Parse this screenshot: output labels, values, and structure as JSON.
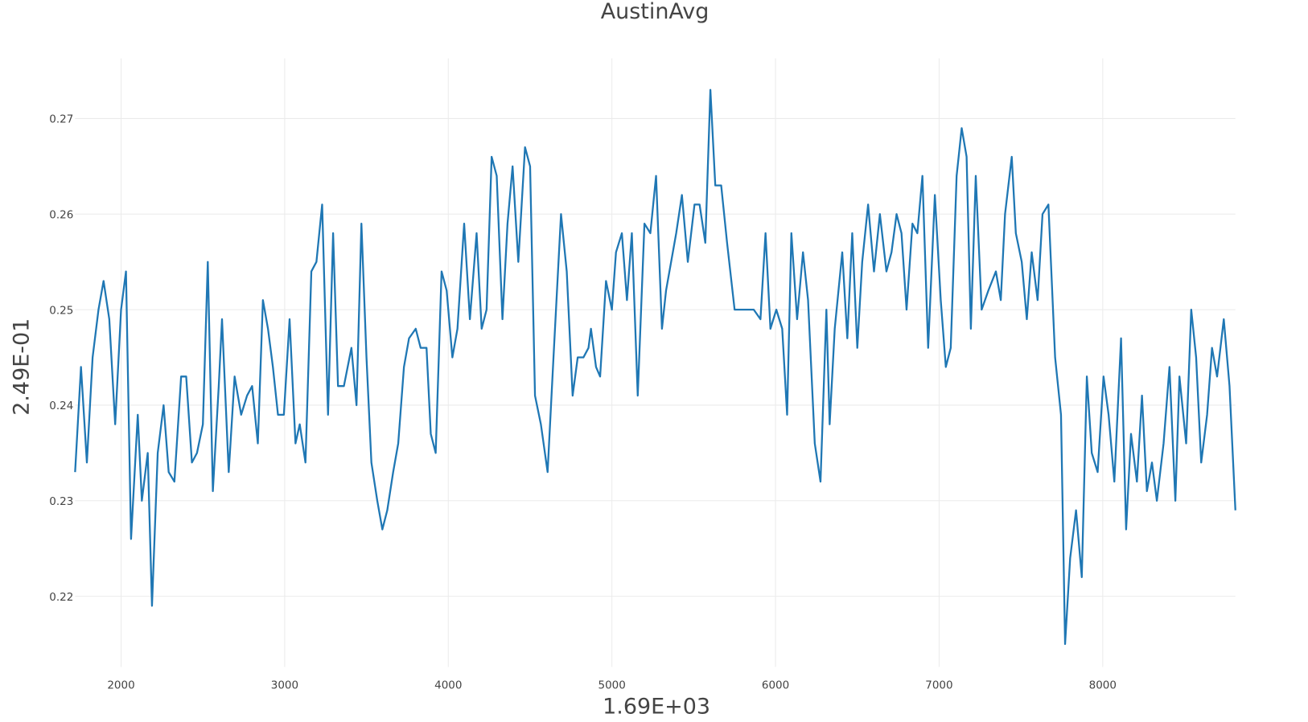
{
  "chart_data": {
    "type": "line",
    "title": "AustinAvg",
    "x_label": "1.69E+03",
    "y_label": "2.49E-01",
    "xlim": [
      1719,
      8811
    ],
    "ylim": [
      0.2126,
      0.2763
    ],
    "xticks": [
      2000,
      3000,
      4000,
      5000,
      6000,
      7000,
      8000
    ],
    "yticks": [
      0.22,
      0.23,
      0.24,
      0.25,
      0.26,
      0.27
    ],
    "grid": true,
    "series": [
      {
        "name": "AustinAvg",
        "color": "#1f77b4",
        "x": [
          1719,
          1755,
          1791,
          1826,
          1862,
          1893,
          1928,
          1964,
          2000,
          2030,
          2061,
          2102,
          2127,
          2163,
          2189,
          2224,
          2260,
          2291,
          2326,
          2367,
          2398,
          2433,
          2464,
          2500,
          2530,
          2561,
          2597,
          2617,
          2658,
          2694,
          2734,
          2770,
          2801,
          2836,
          2867,
          2898,
          2928,
          2959,
          2995,
          3030,
          3066,
          3092,
          3127,
          3163,
          3194,
          3229,
          3265,
          3296,
          3326,
          3362,
          3408,
          3439,
          3469,
          3500,
          3530,
          3566,
          3597,
          3627,
          3663,
          3694,
          3729,
          3760,
          3801,
          3831,
          3867,
          3893,
          3923,
          3959,
          3990,
          4025,
          4056,
          4097,
          4132,
          4173,
          4204,
          4234,
          4265,
          4296,
          4331,
          4362,
          4393,
          4428,
          4469,
          4500,
          4530,
          4566,
          4607,
          4643,
          4689,
          4724,
          4760,
          4791,
          4826,
          4857,
          4872,
          4903,
          4928,
          4964,
          5000,
          5025,
          5061,
          5092,
          5122,
          5158,
          5199,
          5235,
          5270,
          5306,
          5331,
          5362,
          5393,
          5428,
          5464,
          5505,
          5536,
          5571,
          5602,
          5632,
          5668,
          5704,
          5750,
          5801,
          5867,
          5908,
          5939,
          5969,
          6005,
          6041,
          6071,
          6097,
          6132,
          6168,
          6199,
          6240,
          6275,
          6311,
          6331,
          6362,
          6408,
          6439,
          6469,
          6500,
          6530,
          6566,
          6602,
          6638,
          6678,
          6709,
          6740,
          6770,
          6801,
          6837,
          6867,
          6898,
          6933,
          6974,
          7010,
          7041,
          7071,
          7107,
          7138,
          7168,
          7194,
          7224,
          7260,
          7301,
          7347,
          7377,
          7403,
          7444,
          7469,
          7505,
          7536,
          7566,
          7602,
          7632,
          7668,
          7709,
          7745,
          7770,
          7801,
          7837,
          7872,
          7903,
          7933,
          7969,
          8005,
          8036,
          8071,
          8112,
          8143,
          8173,
          8209,
          8240,
          8270,
          8301,
          8331,
          8372,
          8408,
          8444,
          8469,
          8510,
          8541,
          8571,
          8602,
          8638,
          8668,
          8699,
          8740,
          8775,
          8811
        ],
        "values": [
          0.233,
          0.244,
          0.234,
          0.245,
          0.25,
          0.253,
          0.249,
          0.238,
          0.25,
          0.254,
          0.226,
          0.239,
          0.23,
          0.235,
          0.219,
          0.235,
          0.24,
          0.233,
          0.232,
          0.243,
          0.243,
          0.234,
          0.235,
          0.238,
          0.255,
          0.231,
          0.242,
          0.249,
          0.233,
          0.243,
          0.239,
          0.241,
          0.242,
          0.236,
          0.251,
          0.248,
          0.244,
          0.239,
          0.239,
          0.249,
          0.236,
          0.238,
          0.234,
          0.254,
          0.255,
          0.261,
          0.239,
          0.258,
          0.242,
          0.242,
          0.246,
          0.24,
          0.259,
          0.245,
          0.234,
          0.23,
          0.227,
          0.229,
          0.233,
          0.236,
          0.244,
          0.247,
          0.248,
          0.246,
          0.246,
          0.237,
          0.235,
          0.254,
          0.252,
          0.245,
          0.248,
          0.259,
          0.249,
          0.258,
          0.248,
          0.25,
          0.266,
          0.264,
          0.249,
          0.259,
          0.265,
          0.255,
          0.267,
          0.265,
          0.241,
          0.238,
          0.233,
          0.245,
          0.26,
          0.254,
          0.241,
          0.245,
          0.245,
          0.246,
          0.248,
          0.244,
          0.243,
          0.253,
          0.25,
          0.256,
          0.258,
          0.251,
          0.258,
          0.241,
          0.259,
          0.258,
          0.264,
          0.248,
          0.252,
          0.255,
          0.258,
          0.262,
          0.255,
          0.261,
          0.261,
          0.257,
          0.273,
          0.263,
          0.263,
          0.257,
          0.25,
          0.25,
          0.25,
          0.249,
          0.258,
          0.248,
          0.25,
          0.248,
          0.239,
          0.258,
          0.249,
          0.256,
          0.251,
          0.236,
          0.232,
          0.25,
          0.238,
          0.248,
          0.256,
          0.247,
          0.258,
          0.246,
          0.255,
          0.261,
          0.254,
          0.26,
          0.254,
          0.256,
          0.26,
          0.258,
          0.25,
          0.259,
          0.258,
          0.264,
          0.246,
          0.262,
          0.251,
          0.244,
          0.246,
          0.264,
          0.269,
          0.266,
          0.248,
          0.264,
          0.25,
          0.252,
          0.254,
          0.251,
          0.26,
          0.266,
          0.258,
          0.255,
          0.249,
          0.256,
          0.251,
          0.26,
          0.261,
          0.245,
          0.239,
          0.215,
          0.224,
          0.229,
          0.222,
          0.243,
          0.235,
          0.233,
          0.243,
          0.239,
          0.232,
          0.247,
          0.227,
          0.237,
          0.232,
          0.241,
          0.231,
          0.234,
          0.23,
          0.236,
          0.244,
          0.23,
          0.243,
          0.236,
          0.25,
          0.245,
          0.234,
          0.239,
          0.246,
          0.243,
          0.249,
          0.242,
          0.229
        ]
      }
    ]
  }
}
